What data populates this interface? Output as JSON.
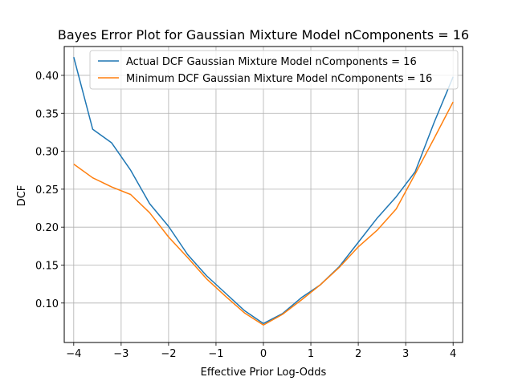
{
  "chart_data": {
    "type": "line",
    "title": "Bayes Error Plot for Gaussian Mixture Model nComponents = 16",
    "xlabel": "Effective Prior Log-Odds",
    "ylabel": "DCF",
    "xlim": [
      -4.2,
      4.2
    ],
    "ylim": [
      0.048,
      0.438
    ],
    "xticks": [
      -4,
      -3,
      -2,
      -1,
      0,
      1,
      2,
      3,
      4
    ],
    "xtick_labels": [
      "−4",
      "−3",
      "−2",
      "−1",
      "0",
      "1",
      "2",
      "3",
      "4"
    ],
    "yticks": [
      0.1,
      0.15,
      0.2,
      0.25,
      0.3,
      0.35,
      0.4
    ],
    "ytick_labels": [
      "0.10",
      "0.15",
      "0.20",
      "0.25",
      "0.30",
      "0.35",
      "0.40"
    ],
    "grid": true,
    "legend_position": "upper-right",
    "x": [
      -4.0,
      -3.6,
      -3.2,
      -2.8,
      -2.4,
      -2.0,
      -1.6,
      -1.2,
      -0.8,
      -0.4,
      0.0,
      0.4,
      0.8,
      1.2,
      1.6,
      2.0,
      2.4,
      2.8,
      3.2,
      3.6,
      4.0
    ],
    "series": [
      {
        "name": "Actual DCF Gaussian Mixture Model nComponents = 16",
        "color": "#1f77b4",
        "values": [
          0.424,
          0.329,
          0.311,
          0.275,
          0.231,
          0.201,
          0.164,
          0.136,
          0.113,
          0.09,
          0.073,
          0.086,
          0.107,
          0.124,
          0.148,
          0.18,
          0.212,
          0.24,
          0.273,
          0.338,
          0.398
        ]
      },
      {
        "name": "Minimum DCF Gaussian Mixture Model nComponents = 16",
        "color": "#ff7f0e",
        "values": [
          0.283,
          0.265,
          0.253,
          0.243,
          0.219,
          0.187,
          0.16,
          0.132,
          0.109,
          0.087,
          0.071,
          0.085,
          0.104,
          0.124,
          0.147,
          0.174,
          0.196,
          0.224,
          0.27,
          0.317,
          0.365
        ]
      }
    ]
  }
}
